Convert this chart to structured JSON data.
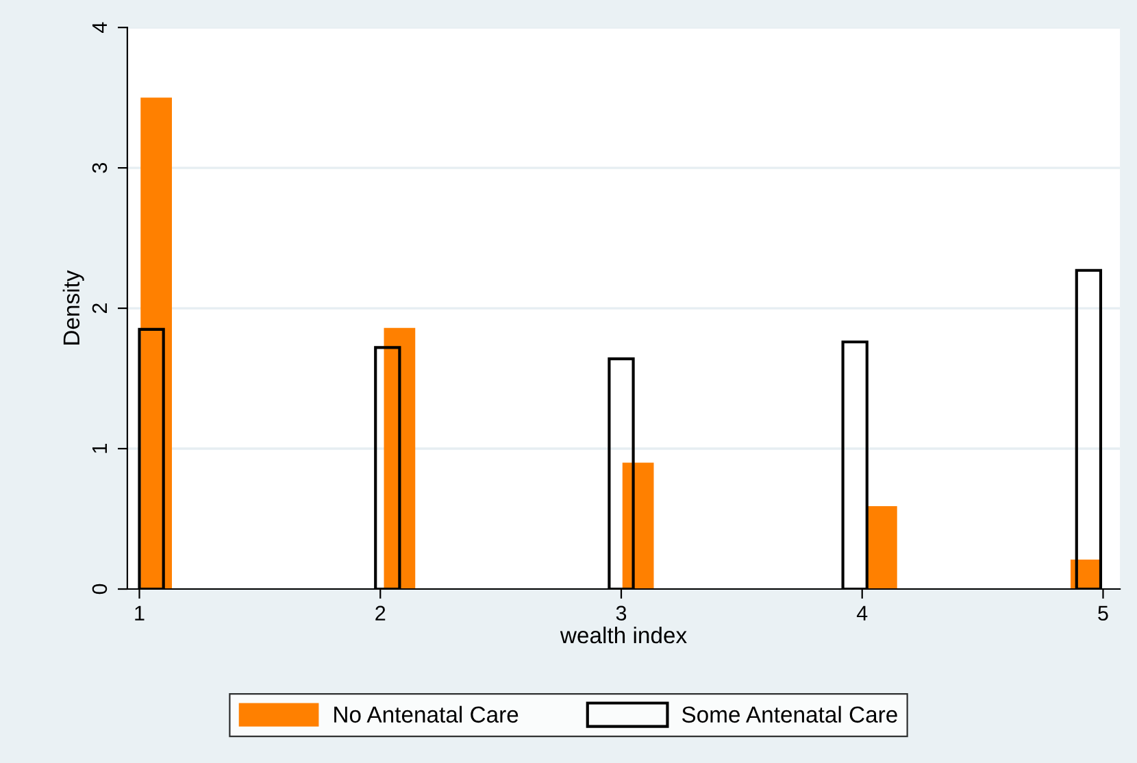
{
  "chart_data": {
    "type": "bar",
    "xlabel": "wealth index",
    "ylabel": "Density",
    "xlim": [
      0.95,
      5.07
    ],
    "xticks": [
      1,
      2,
      3,
      4,
      5
    ],
    "ylim": [
      0,
      4
    ],
    "yticks": [
      0,
      1,
      2,
      3,
      4
    ],
    "grid": "y",
    "legend": "bottom",
    "series": [
      {
        "name": "No Antenatal Care",
        "color": "#ff8000",
        "x": [
          1.07,
          2.08,
          3.07,
          4.08,
          4.93
        ],
        "values": [
          3.5,
          1.86,
          0.9,
          0.59,
          0.21
        ]
      },
      {
        "name": "Some Antenatal Care",
        "color": "#000000",
        "x": [
          1.05,
          2.03,
          3.0,
          3.97,
          4.94
        ],
        "values": [
          1.85,
          1.72,
          1.64,
          1.76,
          2.27
        ]
      }
    ]
  }
}
